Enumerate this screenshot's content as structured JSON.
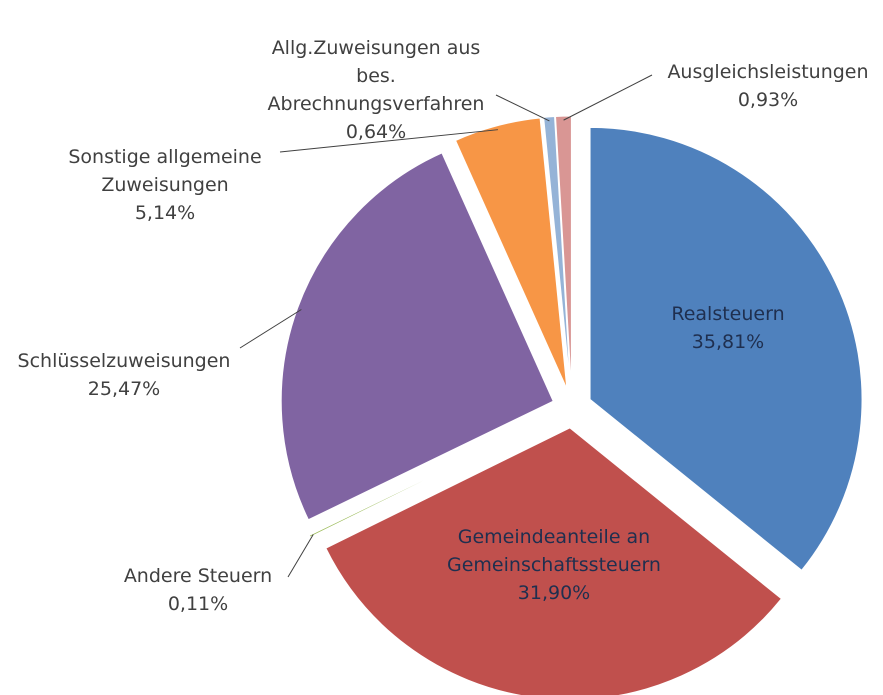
{
  "chart_data": {
    "type": "pie",
    "categories": [
      "Realsteuern",
      "Gemeindeanteile an Gemeinschaftssteuern",
      "Andere Steuern",
      "Schlüsselzuweisungen",
      "Sonstige allgemeine Zuweisungen",
      "Allg.Zuweisungen aus bes. Abrechnungsverfahren",
      "Ausgleichsleistungen"
    ],
    "values": [
      35.81,
      31.9,
      0.11,
      25.47,
      5.14,
      0.64,
      0.93
    ],
    "value_labels": [
      "35,81%",
      "31,90%",
      "0,11%",
      "25,47%",
      "5,14%",
      "0,64%",
      "0,93%"
    ],
    "colors": [
      "#4f81bd",
      "#c0504d",
      "#9bbb59",
      "#8064a2",
      "#f79646",
      "#95b3d7",
      "#d99694"
    ]
  }
}
